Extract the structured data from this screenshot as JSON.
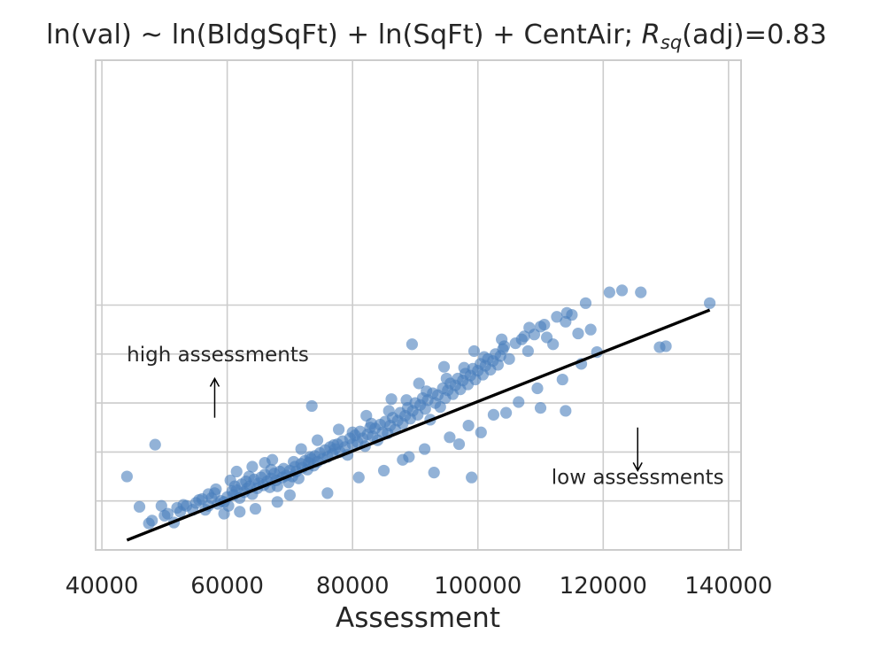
{
  "chart_data": {
    "type": "scatter",
    "title": {
      "prefix": "ln(val) ~ ln(BldgSqFt) + ln(SqFt) + CentAir; ",
      "r_main": "R",
      "r_sub": "sq",
      "suffix": "(adj)=0.83"
    },
    "xlabel": "Assessment",
    "ylabel": "",
    "xlim": [
      39000,
      142000
    ],
    "ylim": [
      0,
      100
    ],
    "x_ticks": [
      40000,
      60000,
      80000,
      100000,
      120000,
      140000
    ],
    "x_tick_labels": [
      "40000",
      "60000",
      "80000",
      "100000",
      "120000",
      "140000"
    ],
    "y_gridlines": [
      10,
      20,
      30,
      40,
      50
    ],
    "grid": true,
    "marker_color": "#4a7fbc",
    "line_color": "#000000",
    "fit_line": [
      [
        44000,
        2.0
      ],
      [
        137000,
        49.0
      ]
    ],
    "annotations": [
      {
        "text": "high assessments",
        "x": 58500,
        "y": 38.5,
        "arrow_from": [
          58000,
          27.0
        ],
        "arrow_to": [
          58000,
          35.0
        ]
      },
      {
        "text": "low assessments",
        "x": 125500,
        "y": 13.5,
        "arrow_from": [
          125500,
          25.0
        ],
        "arrow_to": [
          125500,
          16.2
        ]
      }
    ],
    "points": [
      [
        44000,
        15.0
      ],
      [
        46000,
        8.8
      ],
      [
        48500,
        21.5
      ],
      [
        48000,
        6.0
      ],
      [
        49500,
        9.0
      ],
      [
        50500,
        7.4
      ],
      [
        51500,
        5.6
      ],
      [
        52500,
        7.8
      ],
      [
        53500,
        9.0
      ],
      [
        54500,
        8.2
      ],
      [
        55000,
        9.6
      ],
      [
        56000,
        10.4
      ],
      [
        57000,
        9.0
      ],
      [
        57500,
        10.6
      ],
      [
        58000,
        11.6
      ],
      [
        58500,
        9.4
      ],
      [
        59000,
        10.0
      ],
      [
        59500,
        9.8
      ],
      [
        60000,
        10.8
      ],
      [
        60200,
        9.0
      ],
      [
        60800,
        12.0
      ],
      [
        61000,
        11.2
      ],
      [
        61200,
        13.0
      ],
      [
        61500,
        12.2
      ],
      [
        62000,
        10.6
      ],
      [
        62300,
        13.4
      ],
      [
        62700,
        11.8
      ],
      [
        63000,
        14.0
      ],
      [
        63200,
        12.6
      ],
      [
        63600,
        13.0
      ],
      [
        64000,
        11.4
      ],
      [
        64300,
        14.4
      ],
      [
        64800,
        12.6
      ],
      [
        65000,
        13.6
      ],
      [
        65400,
        14.8
      ],
      [
        65800,
        13.2
      ],
      [
        66000,
        15.4
      ],
      [
        66400,
        14.0
      ],
      [
        66800,
        12.8
      ],
      [
        67000,
        14.6
      ],
      [
        67500,
        15.6
      ],
      [
        67800,
        14.2
      ],
      [
        68000,
        13.0
      ],
      [
        68400,
        16.0
      ],
      [
        68800,
        14.8
      ],
      [
        69000,
        16.6
      ],
      [
        69400,
        15.2
      ],
      [
        69800,
        13.8
      ],
      [
        70000,
        16.2
      ],
      [
        70400,
        15.0
      ],
      [
        70800,
        17.0
      ],
      [
        71000,
        16.0
      ],
      [
        71400,
        14.6
      ],
      [
        71800,
        17.6
      ],
      [
        72000,
        16.8
      ],
      [
        72400,
        18.2
      ],
      [
        72800,
        16.4
      ],
      [
        73000,
        17.8
      ],
      [
        73400,
        18.6
      ],
      [
        73800,
        17.2
      ],
      [
        74000,
        19.2
      ],
      [
        74400,
        18.0
      ],
      [
        74800,
        19.8
      ],
      [
        75200,
        18.6
      ],
      [
        75600,
        20.4
      ],
      [
        76000,
        19.0
      ],
      [
        76400,
        21.0
      ],
      [
        76800,
        19.6
      ],
      [
        77200,
        20.6
      ],
      [
        77600,
        21.6
      ],
      [
        78000,
        20.0
      ],
      [
        78400,
        22.2
      ],
      [
        78800,
        21.0
      ],
      [
        79200,
        19.4
      ],
      [
        79600,
        22.8
      ],
      [
        80000,
        21.6
      ],
      [
        80400,
        23.4
      ],
      [
        80800,
        22.0
      ],
      [
        81200,
        24.2
      ],
      [
        81600,
        22.8
      ],
      [
        82000,
        21.2
      ],
      [
        82400,
        23.6
      ],
      [
        82800,
        25.0
      ],
      [
        83200,
        23.2
      ],
      [
        83600,
        24.8
      ],
      [
        84000,
        22.4
      ],
      [
        84400,
        25.6
      ],
      [
        84800,
        24.0
      ],
      [
        85200,
        26.2
      ],
      [
        85600,
        23.8
      ],
      [
        86000,
        25.4
      ],
      [
        86400,
        27.0
      ],
      [
        86800,
        24.6
      ],
      [
        87200,
        26.4
      ],
      [
        87600,
        28.0
      ],
      [
        88000,
        25.8
      ],
      [
        88400,
        27.4
      ],
      [
        88800,
        29.0
      ],
      [
        89200,
        26.8
      ],
      [
        89600,
        28.4
      ],
      [
        90000,
        30.0
      ],
      [
        90400,
        27.6
      ],
      [
        90800,
        29.6
      ],
      [
        91200,
        31.0
      ],
      [
        91600,
        28.8
      ],
      [
        92000,
        30.6
      ],
      [
        92400,
        26.6
      ],
      [
        92800,
        32.0
      ],
      [
        93200,
        30.0
      ],
      [
        93600,
        31.6
      ],
      [
        94000,
        29.2
      ],
      [
        94400,
        33.0
      ],
      [
        94800,
        31.0
      ],
      [
        95200,
        32.6
      ],
      [
        95600,
        34.0
      ],
      [
        96000,
        31.8
      ],
      [
        96400,
        33.6
      ],
      [
        96800,
        35.0
      ],
      [
        97200,
        32.8
      ],
      [
        97600,
        34.6
      ],
      [
        98000,
        36.0
      ],
      [
        98400,
        33.8
      ],
      [
        98800,
        35.6
      ],
      [
        99200,
        37.0
      ],
      [
        99600,
        34.8
      ],
      [
        100000,
        36.6
      ],
      [
        100400,
        38.0
      ],
      [
        100800,
        35.8
      ],
      [
        101200,
        37.6
      ],
      [
        101600,
        39.0
      ],
      [
        102000,
        36.8
      ],
      [
        102400,
        38.6
      ],
      [
        102800,
        40.0
      ],
      [
        103200,
        37.8
      ],
      [
        103600,
        39.6
      ],
      [
        104000,
        41.0
      ],
      [
        105000,
        39.0
      ],
      [
        106000,
        42.2
      ],
      [
        107000,
        43.0
      ],
      [
        108000,
        40.6
      ],
      [
        109000,
        44.0
      ],
      [
        110000,
        45.6
      ],
      [
        111000,
        43.4
      ],
      [
        112000,
        42.0
      ],
      [
        114000,
        46.6
      ],
      [
        115000,
        48.0
      ],
      [
        116000,
        44.2
      ],
      [
        118000,
        45.0
      ],
      [
        123000,
        53.0
      ],
      [
        126000,
        52.6
      ],
      [
        129000,
        41.4
      ],
      [
        130000,
        41.6
      ],
      [
        137000,
        50.4
      ],
      [
        89500,
        42.0
      ],
      [
        73500,
        29.4
      ],
      [
        89000,
        19.0
      ],
      [
        93000,
        15.8
      ],
      [
        99000,
        14.8
      ],
      [
        97000,
        21.6
      ],
      [
        100500,
        24.0
      ],
      [
        104500,
        28.0
      ],
      [
        110000,
        29.0
      ],
      [
        114000,
        28.4
      ],
      [
        66000,
        17.8
      ],
      [
        64500,
        8.4
      ],
      [
        62000,
        7.8
      ],
      [
        59500,
        7.4
      ],
      [
        56500,
        8.2
      ],
      [
        53000,
        9.2
      ],
      [
        68000,
        9.8
      ],
      [
        70000,
        11.2
      ],
      [
        76000,
        11.6
      ],
      [
        81000,
        14.8
      ],
      [
        85000,
        16.2
      ],
      [
        88000,
        18.4
      ],
      [
        91500,
        20.6
      ],
      [
        95500,
        23.0
      ],
      [
        98500,
        25.4
      ],
      [
        102500,
        27.6
      ],
      [
        106500,
        30.2
      ],
      [
        109500,
        33.0
      ],
      [
        113500,
        34.8
      ],
      [
        116500,
        38.0
      ],
      [
        119000,
        40.4
      ],
      [
        61500,
        16.0
      ],
      [
        64000,
        17.0
      ],
      [
        67200,
        18.4
      ],
      [
        71800,
        20.6
      ],
      [
        74400,
        22.4
      ],
      [
        77800,
        24.6
      ],
      [
        82200,
        27.4
      ],
      [
        86200,
        30.8
      ],
      [
        90600,
        34.0
      ],
      [
        94600,
        37.4
      ],
      [
        99400,
        40.6
      ],
      [
        103800,
        43.0
      ],
      [
        108200,
        45.4
      ],
      [
        112600,
        47.6
      ],
      [
        117200,
        50.4
      ],
      [
        121000,
        52.6
      ],
      [
        58200,
        12.4
      ],
      [
        60500,
        14.2
      ],
      [
        63500,
        15.0
      ],
      [
        67000,
        16.4
      ],
      [
        70600,
        18.0
      ],
      [
        73200,
        19.0
      ],
      [
        77000,
        21.4
      ],
      [
        80000,
        24.0
      ],
      [
        83000,
        25.8
      ],
      [
        85800,
        28.4
      ],
      [
        88600,
        30.6
      ],
      [
        91800,
        32.4
      ],
      [
        95000,
        35.0
      ],
      [
        97800,
        37.2
      ],
      [
        101000,
        39.4
      ],
      [
        104200,
        41.6
      ],
      [
        107400,
        43.6
      ],
      [
        110600,
        46.0
      ],
      [
        114200,
        48.4
      ],
      [
        57000,
        11.4
      ],
      [
        55500,
        10.2
      ],
      [
        52000,
        8.6
      ],
      [
        50000,
        7.0
      ],
      [
        47500,
        5.4
      ]
    ]
  }
}
